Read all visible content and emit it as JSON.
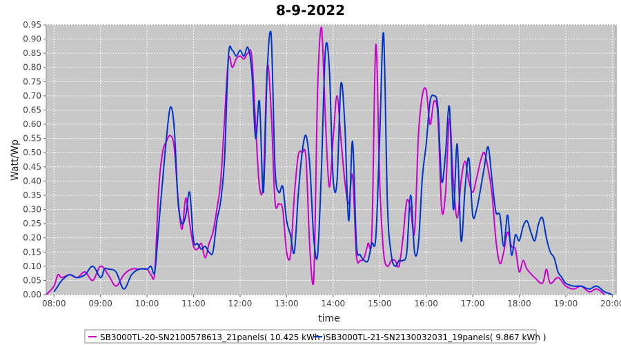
{
  "chart_data": {
    "type": "line",
    "title": "8-9-2022",
    "xlabel": "time",
    "ylabel": "Watt/Wp",
    "xlim": [
      "07:50",
      "20:05"
    ],
    "ylim": [
      0,
      0.95
    ],
    "y_ticks": [
      "0.00",
      "0.05",
      "0.10",
      "0.15",
      "0.20",
      "0.25",
      "0.30",
      "0.35",
      "0.40",
      "0.45",
      "0.50",
      "0.55",
      "0.60",
      "0.65",
      "0.70",
      "0.75",
      "0.80",
      "0.85",
      "0.90",
      "0.95"
    ],
    "x_ticks": [
      "08:00",
      "09:00",
      "10:00",
      "11:00",
      "12:00",
      "13:00",
      "14:00",
      "15:00",
      "16:00",
      "17:00",
      "18:00",
      "19:00",
      "20:00"
    ],
    "grid": true,
    "legend_position": "bottom",
    "series": [
      {
        "name": "SB3000TL-20-SN2100578613_21panels( 10.425 kWh )",
        "color": "#cc00cc",
        "points": [
          [
            "07:50",
            0.0
          ],
          [
            "08:00",
            0.03
          ],
          [
            "08:05",
            0.07
          ],
          [
            "08:10",
            0.06
          ],
          [
            "08:20",
            0.07
          ],
          [
            "08:30",
            0.06
          ],
          [
            "08:40",
            0.08
          ],
          [
            "08:50",
            0.05
          ],
          [
            "09:00",
            0.1
          ],
          [
            "09:10",
            0.07
          ],
          [
            "09:20",
            0.03
          ],
          [
            "09:30",
            0.07
          ],
          [
            "09:40",
            0.09
          ],
          [
            "09:50",
            0.09
          ],
          [
            "10:00",
            0.09
          ],
          [
            "10:05",
            0.07
          ],
          [
            "10:10",
            0.08
          ],
          [
            "10:15",
            0.37
          ],
          [
            "10:20",
            0.5
          ],
          [
            "10:25",
            0.54
          ],
          [
            "10:30",
            0.56
          ],
          [
            "10:35",
            0.52
          ],
          [
            "10:40",
            0.34
          ],
          [
            "10:45",
            0.23
          ],
          [
            "10:50",
            0.34
          ],
          [
            "10:55",
            0.25
          ],
          [
            "11:00",
            0.17
          ],
          [
            "11:05",
            0.16
          ],
          [
            "11:10",
            0.18
          ],
          [
            "11:15",
            0.13
          ],
          [
            "11:20",
            0.18
          ],
          [
            "11:25",
            0.22
          ],
          [
            "11:30",
            0.3
          ],
          [
            "11:35",
            0.4
          ],
          [
            "11:40",
            0.62
          ],
          [
            "11:45",
            0.83
          ],
          [
            "11:50",
            0.8
          ],
          [
            "11:55",
            0.83
          ],
          [
            "12:00",
            0.84
          ],
          [
            "12:05",
            0.83
          ],
          [
            "12:10",
            0.85
          ],
          [
            "12:15",
            0.84
          ],
          [
            "12:20",
            0.6
          ],
          [
            "12:25",
            0.38
          ],
          [
            "12:30",
            0.4
          ],
          [
            "12:35",
            0.8
          ],
          [
            "12:40",
            0.65
          ],
          [
            "12:45",
            0.33
          ],
          [
            "12:50",
            0.32
          ],
          [
            "12:55",
            0.3
          ],
          [
            "13:00",
            0.15
          ],
          [
            "13:05",
            0.14
          ],
          [
            "13:10",
            0.35
          ],
          [
            "13:15",
            0.49
          ],
          [
            "13:20",
            0.5
          ],
          [
            "13:25",
            0.48
          ],
          [
            "13:30",
            0.16
          ],
          [
            "13:35",
            0.05
          ],
          [
            "13:40",
            0.72
          ],
          [
            "13:45",
            0.94
          ],
          [
            "13:50",
            0.62
          ],
          [
            "13:55",
            0.38
          ],
          [
            "14:00",
            0.55
          ],
          [
            "14:05",
            0.7
          ],
          [
            "14:10",
            0.55
          ],
          [
            "14:15",
            0.4
          ],
          [
            "14:20",
            0.32
          ],
          [
            "14:25",
            0.42
          ],
          [
            "14:30",
            0.14
          ],
          [
            "14:35",
            0.12
          ],
          [
            "14:40",
            0.13
          ],
          [
            "14:45",
            0.18
          ],
          [
            "14:50",
            0.22
          ],
          [
            "14:55",
            0.88
          ],
          [
            "15:00",
            0.4
          ],
          [
            "15:05",
            0.15
          ],
          [
            "15:10",
            0.1
          ],
          [
            "15:15",
            0.12
          ],
          [
            "15:20",
            0.12
          ],
          [
            "15:25",
            0.1
          ],
          [
            "15:30",
            0.2
          ],
          [
            "15:35",
            0.33
          ],
          [
            "15:40",
            0.3
          ],
          [
            "15:45",
            0.22
          ],
          [
            "15:50",
            0.56
          ],
          [
            "15:55",
            0.7
          ],
          [
            "16:00",
            0.72
          ],
          [
            "16:05",
            0.6
          ],
          [
            "16:10",
            0.68
          ],
          [
            "16:15",
            0.63
          ],
          [
            "16:20",
            0.3
          ],
          [
            "16:25",
            0.36
          ],
          [
            "16:30",
            0.62
          ],
          [
            "16:35",
            0.4
          ],
          [
            "16:40",
            0.27
          ],
          [
            "16:45",
            0.4
          ],
          [
            "16:50",
            0.47
          ],
          [
            "16:55",
            0.4
          ],
          [
            "17:00",
            0.36
          ],
          [
            "17:05",
            0.41
          ],
          [
            "17:10",
            0.47
          ],
          [
            "17:15",
            0.5
          ],
          [
            "17:20",
            0.44
          ],
          [
            "17:25",
            0.35
          ],
          [
            "17:30",
            0.19
          ],
          [
            "17:35",
            0.11
          ],
          [
            "17:40",
            0.15
          ],
          [
            "17:45",
            0.22
          ],
          [
            "17:50",
            0.17
          ],
          [
            "17:55",
            0.16
          ],
          [
            "18:00",
            0.08
          ],
          [
            "18:05",
            0.12
          ],
          [
            "18:10",
            0.09
          ],
          [
            "18:20",
            0.06
          ],
          [
            "18:30",
            0.04
          ],
          [
            "18:35",
            0.09
          ],
          [
            "18:40",
            0.04
          ],
          [
            "18:50",
            0.06
          ],
          [
            "19:00",
            0.03
          ],
          [
            "19:10",
            0.02
          ],
          [
            "19:20",
            0.03
          ],
          [
            "19:30",
            0.01
          ],
          [
            "19:40",
            0.02
          ],
          [
            "19:50",
            0.0
          ]
        ]
      },
      {
        "name": "SB3000TL-21-SN2130032031_19panels( 9.867 kWh )",
        "color": "#0033cc",
        "points": [
          [
            "08:00",
            0.01
          ],
          [
            "08:05",
            0.03
          ],
          [
            "08:10",
            0.05
          ],
          [
            "08:20",
            0.07
          ],
          [
            "08:30",
            0.06
          ],
          [
            "08:40",
            0.07
          ],
          [
            "08:50",
            0.1
          ],
          [
            "09:00",
            0.06
          ],
          [
            "09:05",
            0.09
          ],
          [
            "09:10",
            0.09
          ],
          [
            "09:20",
            0.08
          ],
          [
            "09:30",
            0.02
          ],
          [
            "09:40",
            0.07
          ],
          [
            "09:50",
            0.09
          ],
          [
            "10:00",
            0.09
          ],
          [
            "10:05",
            0.1
          ],
          [
            "10:10",
            0.08
          ],
          [
            "10:15",
            0.24
          ],
          [
            "10:20",
            0.4
          ],
          [
            "10:25",
            0.55
          ],
          [
            "10:30",
            0.66
          ],
          [
            "10:35",
            0.59
          ],
          [
            "10:40",
            0.33
          ],
          [
            "10:45",
            0.25
          ],
          [
            "10:50",
            0.28
          ],
          [
            "10:55",
            0.36
          ],
          [
            "11:00",
            0.19
          ],
          [
            "11:05",
            0.18
          ],
          [
            "11:10",
            0.16
          ],
          [
            "11:15",
            0.17
          ],
          [
            "11:20",
            0.15
          ],
          [
            "11:25",
            0.15
          ],
          [
            "11:30",
            0.26
          ],
          [
            "11:35",
            0.33
          ],
          [
            "11:40",
            0.48
          ],
          [
            "11:45",
            0.84
          ],
          [
            "11:50",
            0.86
          ],
          [
            "11:55",
            0.84
          ],
          [
            "12:00",
            0.86
          ],
          [
            "12:05",
            0.84
          ],
          [
            "12:10",
            0.87
          ],
          [
            "12:15",
            0.79
          ],
          [
            "12:20",
            0.55
          ],
          [
            "12:25",
            0.68
          ],
          [
            "12:30",
            0.36
          ],
          [
            "12:35",
            0.79
          ],
          [
            "12:40",
            0.92
          ],
          [
            "12:45",
            0.45
          ],
          [
            "12:50",
            0.36
          ],
          [
            "12:55",
            0.38
          ],
          [
            "13:00",
            0.26
          ],
          [
            "13:05",
            0.21
          ],
          [
            "13:10",
            0.15
          ],
          [
            "13:15",
            0.35
          ],
          [
            "13:20",
            0.5
          ],
          [
            "13:25",
            0.56
          ],
          [
            "13:30",
            0.45
          ],
          [
            "13:35",
            0.2
          ],
          [
            "13:40",
            0.14
          ],
          [
            "13:45",
            0.45
          ],
          [
            "13:50",
            0.86
          ],
          [
            "13:55",
            0.8
          ],
          [
            "14:00",
            0.41
          ],
          [
            "14:05",
            0.4
          ],
          [
            "14:10",
            0.74
          ],
          [
            "14:15",
            0.6
          ],
          [
            "14:20",
            0.26
          ],
          [
            "14:25",
            0.54
          ],
          [
            "14:30",
            0.18
          ],
          [
            "14:35",
            0.14
          ],
          [
            "14:40",
            0.12
          ],
          [
            "14:45",
            0.12
          ],
          [
            "14:50",
            0.18
          ],
          [
            "14:55",
            0.2
          ],
          [
            "15:00",
            0.55
          ],
          [
            "15:05",
            0.92
          ],
          [
            "15:10",
            0.32
          ],
          [
            "15:15",
            0.14
          ],
          [
            "15:20",
            0.1
          ],
          [
            "15:25",
            0.12
          ],
          [
            "15:30",
            0.12
          ],
          [
            "15:35",
            0.15
          ],
          [
            "15:40",
            0.35
          ],
          [
            "15:45",
            0.15
          ],
          [
            "15:50",
            0.18
          ],
          [
            "15:55",
            0.41
          ],
          [
            "16:00",
            0.53
          ],
          [
            "16:05",
            0.68
          ],
          [
            "16:10",
            0.7
          ],
          [
            "16:15",
            0.66
          ],
          [
            "16:20",
            0.4
          ],
          [
            "16:25",
            0.5
          ],
          [
            "16:30",
            0.66
          ],
          [
            "16:35",
            0.3
          ],
          [
            "16:40",
            0.53
          ],
          [
            "16:45",
            0.19
          ],
          [
            "16:50",
            0.37
          ],
          [
            "16:55",
            0.48
          ],
          [
            "17:00",
            0.28
          ],
          [
            "17:05",
            0.3
          ],
          [
            "17:10",
            0.37
          ],
          [
            "17:15",
            0.45
          ],
          [
            "17:20",
            0.52
          ],
          [
            "17:25",
            0.4
          ],
          [
            "17:30",
            0.29
          ],
          [
            "17:35",
            0.28
          ],
          [
            "17:40",
            0.17
          ],
          [
            "17:45",
            0.28
          ],
          [
            "17:50",
            0.14
          ],
          [
            "17:55",
            0.21
          ],
          [
            "18:00",
            0.19
          ],
          [
            "18:05",
            0.24
          ],
          [
            "18:10",
            0.26
          ],
          [
            "18:15",
            0.22
          ],
          [
            "18:20",
            0.19
          ],
          [
            "18:25",
            0.25
          ],
          [
            "18:30",
            0.27
          ],
          [
            "18:35",
            0.2
          ],
          [
            "18:40",
            0.15
          ],
          [
            "18:45",
            0.13
          ],
          [
            "18:50",
            0.08
          ],
          [
            "18:55",
            0.06
          ],
          [
            "19:00",
            0.04
          ],
          [
            "19:10",
            0.03
          ],
          [
            "19:20",
            0.03
          ],
          [
            "19:30",
            0.02
          ],
          [
            "19:40",
            0.03
          ],
          [
            "19:50",
            0.01
          ],
          [
            "20:00",
            0.0
          ]
        ]
      }
    ]
  }
}
